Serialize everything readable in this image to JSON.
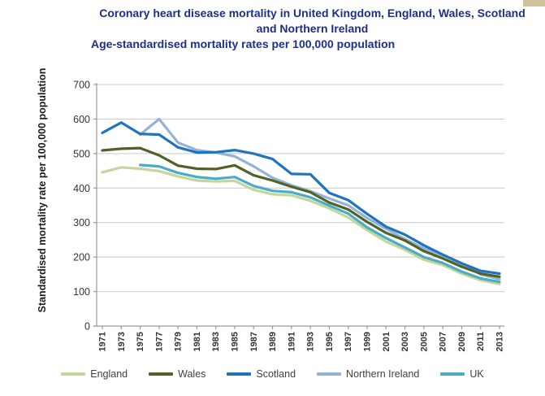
{
  "title_block": {
    "title": "Coronary heart disease mortality in United Kingdom, England, Wales, Scotland and Northern Ireland",
    "subtitle": "Age-standardised mortality rates per 100,000 population"
  },
  "chart_data": {
    "type": "line",
    "title": "Coronary heart disease mortality in United Kingdom, England, Wales, Scotland and Northern Ireland",
    "subtitle": "Age-standardised mortality rates per 100,000 population",
    "ylabel": "Standardised mortality rate per 100,000 population",
    "xlabel": "",
    "ylim": [
      0,
      700
    ],
    "ytick_interval": 100,
    "yticks": [
      0,
      100,
      200,
      300,
      400,
      500,
      600,
      700
    ],
    "grid": true,
    "legend_position": "bottom",
    "x": [
      1971,
      1973,
      1975,
      1977,
      1979,
      1981,
      1983,
      1985,
      1987,
      1989,
      1991,
      1993,
      1995,
      1997,
      1999,
      2001,
      2003,
      2005,
      2007,
      2009,
      2011,
      2013
    ],
    "series": [
      {
        "name": "England",
        "color": "#c3d69b",
        "values": [
          446,
          460,
          456,
          449,
          434,
          422,
          419,
          421,
          395,
          382,
          379,
          363,
          341,
          315,
          278,
          245,
          221,
          192,
          177,
          152,
          133,
          122
        ]
      },
      {
        "name": "Wales",
        "color": "#4f6228",
        "values": [
          509,
          514,
          516,
          495,
          465,
          456,
          455,
          466,
          437,
          422,
          404,
          388,
          358,
          338,
          302,
          270,
          248,
          217,
          196,
          172,
          152,
          143
        ]
      },
      {
        "name": "Scotland",
        "color": "#2173bd",
        "values": [
          560,
          590,
          557,
          555,
          518,
          503,
          504,
          510,
          500,
          484,
          441,
          440,
          386,
          365,
          325,
          288,
          265,
          234,
          207,
          182,
          160,
          152
        ]
      },
      {
        "name": "Northern Ireland",
        "color": "#95b3d7",
        "values": [
          null,
          null,
          555,
          600,
          532,
          510,
          503,
          492,
          463,
          430,
          408,
          391,
          370,
          350,
          313,
          282,
          252,
          225,
          205,
          180,
          150,
          136
        ]
      },
      {
        "name": "UK",
        "color": "#4bacc6",
        "values": [
          null,
          null,
          467,
          463,
          444,
          432,
          427,
          432,
          406,
          392,
          388,
          373,
          349,
          326,
          286,
          255,
          228,
          200,
          183,
          158,
          138,
          128
        ]
      }
    ],
    "draw_order": [
      "England",
      "UK",
      "Northern Ireland",
      "Wales",
      "Scotland"
    ]
  },
  "colors": {
    "title_text": "#1e2f87",
    "axis_labels": "#333333",
    "gridline": "#c9c9c9",
    "axis_line": "#9b9b9b",
    "legend_text": "#404040",
    "corner_artifact": "#cdc49c"
  }
}
